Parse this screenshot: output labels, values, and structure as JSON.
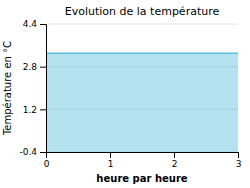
{
  "chart_data": {
    "type": "area",
    "title": "Evolution de la température",
    "x_label": "heure par heure",
    "y_label": "Température en °C",
    "x": [
      0,
      1,
      2,
      3
    ],
    "values": [
      3.3,
      3.3,
      3.3,
      3.3
    ],
    "color": "#5abfdc",
    "xlim": [
      0,
      3
    ],
    "xticks": [
      0,
      1,
      2,
      3
    ],
    "ylim": [
      -0.4,
      4.4
    ],
    "yticks": [
      -0.4,
      1.2,
      2.8,
      4.4
    ],
    "grid": true
  }
}
